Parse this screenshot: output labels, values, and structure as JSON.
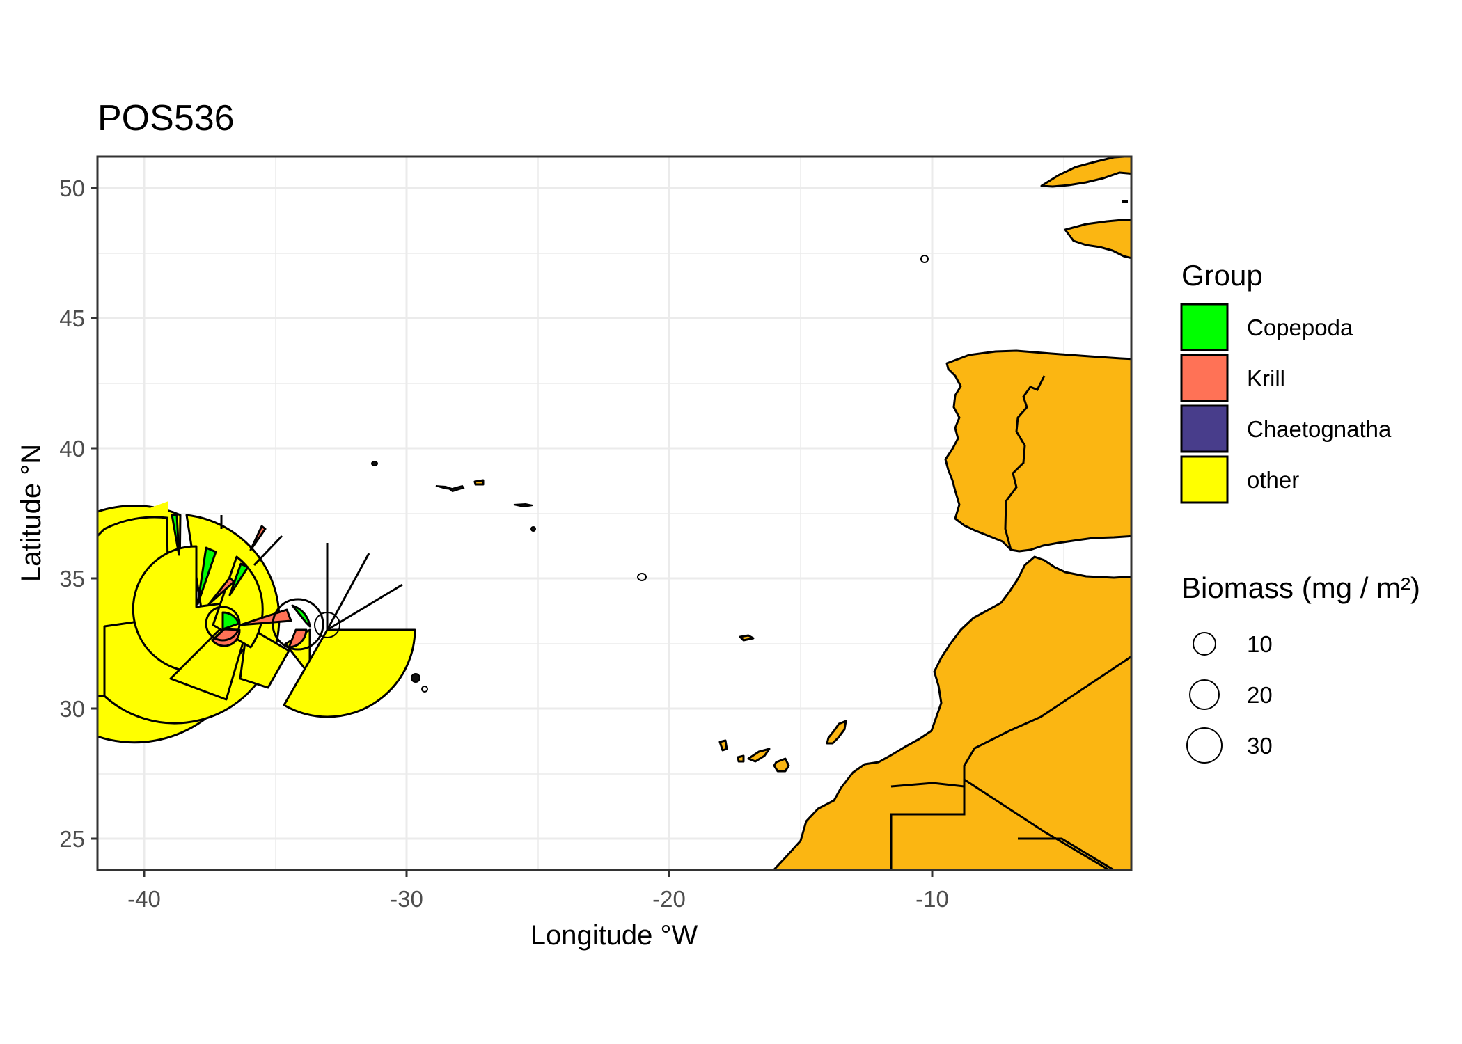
{
  "title": "POS536",
  "axes": {
    "x_label": "Longitude °W",
    "y_label": "Latitude °N",
    "x_ticks": [
      "-40",
      "-30",
      "-20",
      "-10"
    ],
    "y_ticks": [
      "50",
      "45",
      "40",
      "35",
      "30",
      "25"
    ],
    "xlim": [
      -42,
      -2.5
    ],
    "ylim": [
      23.8,
      51.2
    ]
  },
  "legend_group": {
    "title": "Group",
    "items": [
      {
        "label": "Copepoda",
        "color": "#00ff00"
      },
      {
        "label": "Krill",
        "color": "#ff7256"
      },
      {
        "label": "Chaetognatha",
        "color": "#483d8b"
      },
      {
        "label": "other",
        "color": "#ffff00"
      }
    ]
  },
  "legend_size": {
    "title": "Biomass (mg / m²)",
    "items": [
      "10",
      "20",
      "30"
    ]
  },
  "colors": {
    "land": "#fbb612",
    "grid": "#ebebeb",
    "panel_border": "#333333"
  }
}
